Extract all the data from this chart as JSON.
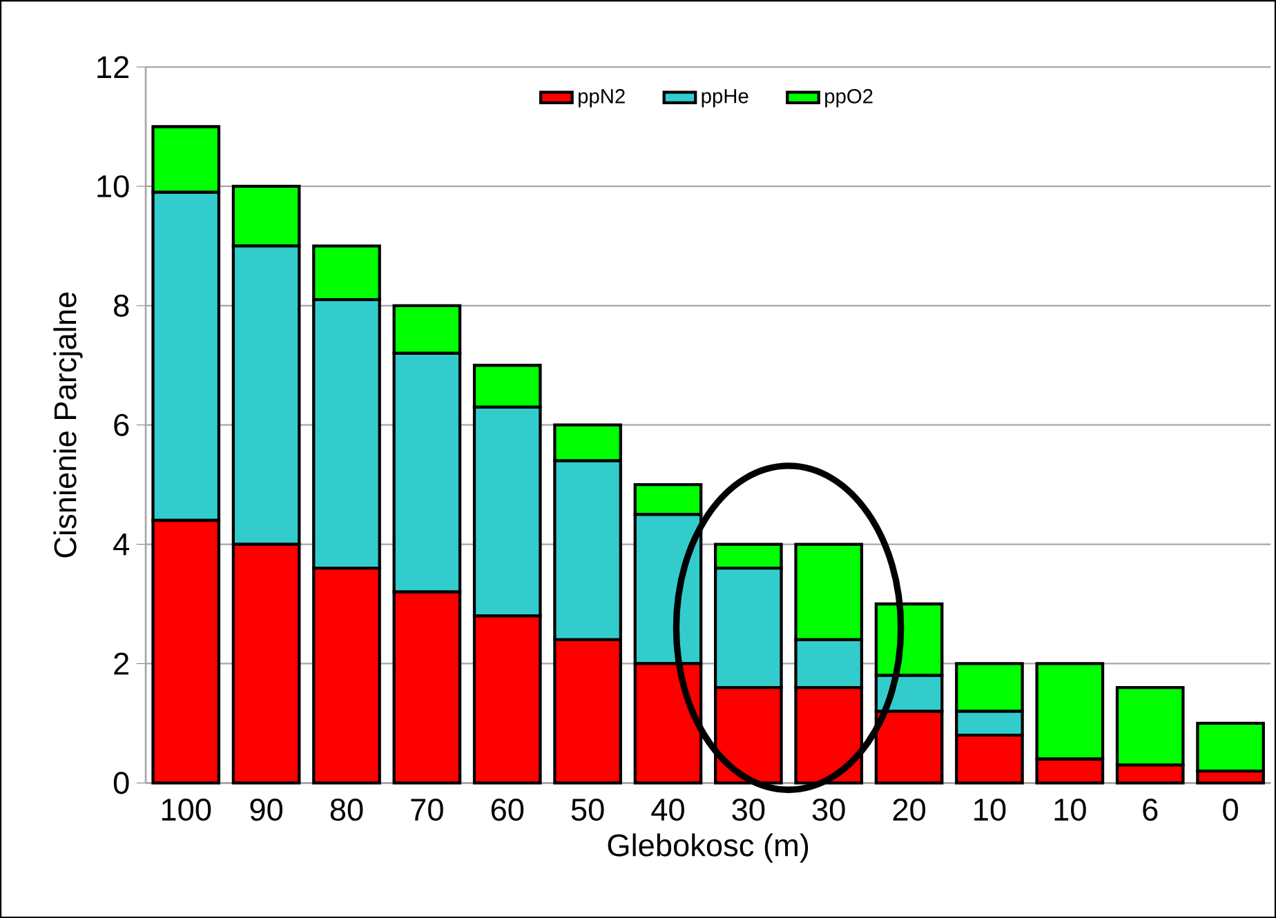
{
  "chart_data": {
    "type": "bar",
    "stacked": true,
    "xlabel": "Glebokosc (m)",
    "ylabel": "Cisnienie Parcjalne",
    "categories": [
      "100",
      "90",
      "80",
      "70",
      "60",
      "50",
      "40",
      "30",
      "30",
      "20",
      "10",
      "10",
      "6",
      "0"
    ],
    "series": [
      {
        "name": "ppN2",
        "color": "#ff0000",
        "values": [
          4.4,
          4.0,
          3.6,
          3.2,
          2.8,
          2.4,
          2.0,
          1.6,
          1.6,
          1.2,
          0.8,
          0.4,
          0.3,
          0.2
        ]
      },
      {
        "name": "ppHe",
        "color": "#33cccc",
        "values": [
          5.5,
          5.0,
          4.5,
          4.0,
          3.5,
          3.0,
          2.5,
          2.0,
          0.8,
          0.6,
          0.4,
          0,
          0,
          0
        ]
      },
      {
        "name": "ppO2",
        "color": "#00ff00",
        "values": [
          1.1,
          1.0,
          0.9,
          0.8,
          0.7,
          0.6,
          0.5,
          0.4,
          1.6,
          1.2,
          0.8,
          1.6,
          1.3,
          0.8
        ]
      }
    ],
    "ylim": [
      0,
      12
    ],
    "yticks": [
      0,
      2,
      4,
      6,
      8,
      10,
      12
    ],
    "grid": "y",
    "legend": "top"
  }
}
